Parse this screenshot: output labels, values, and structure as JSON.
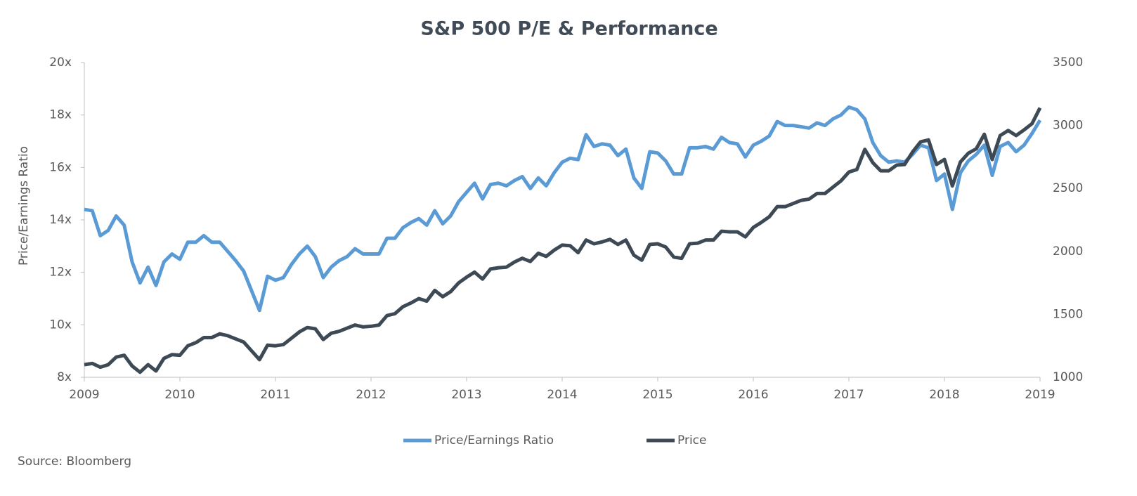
{
  "chart_data": {
    "type": "line",
    "title": "S&P 500 P/E & Performance",
    "y_label": "Price/Earnings Ratio",
    "source": "Source: Bloomberg",
    "x": [
      2009,
      2009.083,
      2009.167,
      2009.25,
      2009.333,
      2009.417,
      2009.5,
      2009.583,
      2009.667,
      2009.75,
      2009.833,
      2009.917,
      2010,
      2010.083,
      2010.167,
      2010.25,
      2010.333,
      2010.417,
      2010.5,
      2010.583,
      2010.667,
      2010.75,
      2010.833,
      2010.917,
      2011,
      2011.083,
      2011.167,
      2011.25,
      2011.333,
      2011.417,
      2011.5,
      2011.583,
      2011.667,
      2011.75,
      2011.833,
      2011.917,
      2012,
      2012.083,
      2012.167,
      2012.25,
      2012.333,
      2012.417,
      2012.5,
      2012.583,
      2012.667,
      2012.75,
      2012.833,
      2012.917,
      2013,
      2013.083,
      2013.167,
      2013.25,
      2013.333,
      2013.417,
      2013.5,
      2013.583,
      2013.667,
      2013.75,
      2013.833,
      2013.917,
      2014,
      2014.083,
      2014.167,
      2014.25,
      2014.333,
      2014.417,
      2014.5,
      2014.583,
      2014.667,
      2014.75,
      2014.833,
      2014.917,
      2015,
      2015.083,
      2015.167,
      2015.25,
      2015.333,
      2015.417,
      2015.5,
      2015.583,
      2015.667,
      2015.75,
      2015.833,
      2015.917,
      2016,
      2016.083,
      2016.167,
      2016.25,
      2016.333,
      2016.417,
      2016.5,
      2016.583,
      2016.667,
      2016.75,
      2016.833,
      2016.917,
      2017,
      2017.083,
      2017.167,
      2017.25,
      2017.333,
      2017.417,
      2017.5,
      2017.583,
      2017.667,
      2017.75,
      2017.833,
      2017.917,
      2018,
      2018.083,
      2018.167,
      2018.25,
      2018.333,
      2018.417,
      2018.5,
      2018.583,
      2018.667,
      2018.75,
      2018.833,
      2018.917,
      2019
    ],
    "series": [
      {
        "name": "Price/Earnings Ratio",
        "color": "#5b9bd5",
        "axis": "y",
        "values": [
          14.4,
          14.35,
          13.4,
          13.6,
          14.15,
          13.8,
          12.4,
          11.6,
          12.2,
          11.5,
          12.4,
          12.7,
          12.5,
          13.15,
          13.15,
          13.4,
          13.15,
          13.15,
          12.8,
          12.45,
          12.05,
          11.3,
          10.55,
          11.85,
          11.7,
          11.8,
          12.3,
          12.7,
          13.0,
          12.6,
          11.8,
          12.2,
          12.45,
          12.6,
          12.9,
          12.7,
          12.7,
          12.7,
          13.3,
          13.3,
          13.7,
          13.9,
          14.05,
          13.8,
          14.35,
          13.85,
          14.15,
          14.7,
          15.05,
          15.4,
          14.8,
          15.35,
          15.4,
          15.3,
          15.5,
          15.65,
          15.2,
          15.6,
          15.3,
          15.8,
          16.2,
          16.35,
          16.3,
          17.25,
          16.8,
          16.9,
          16.85,
          16.45,
          16.7,
          15.6,
          15.2,
          16.6,
          16.55,
          16.25,
          15.75,
          15.75,
          16.75,
          16.75,
          16.8,
          16.7,
          17.15,
          16.95,
          16.9,
          16.4,
          16.85,
          17.0,
          17.2,
          17.75,
          17.6,
          17.6,
          17.55,
          17.5,
          17.7,
          17.6,
          17.85,
          18.0,
          18.3,
          18.2,
          17.85,
          16.95,
          16.45,
          16.2,
          16.25,
          16.2,
          16.5,
          16.85,
          16.75,
          15.5,
          15.75,
          14.4,
          15.8,
          16.25,
          16.5,
          16.85,
          15.7,
          16.8,
          16.95,
          16.6,
          16.85,
          17.3,
          17.8
        ]
      },
      {
        "name": "Price",
        "color": "#3d4a55",
        "axis": "y2",
        "values": [
          1100,
          1110,
          1080,
          1100,
          1160,
          1175,
          1090,
          1040,
          1100,
          1050,
          1150,
          1180,
          1175,
          1250,
          1275,
          1315,
          1315,
          1345,
          1330,
          1305,
          1280,
          1210,
          1140,
          1255,
          1250,
          1260,
          1310,
          1360,
          1395,
          1385,
          1300,
          1350,
          1365,
          1390,
          1415,
          1400,
          1405,
          1415,
          1490,
          1505,
          1560,
          1590,
          1625,
          1605,
          1690,
          1640,
          1680,
          1750,
          1795,
          1835,
          1780,
          1860,
          1870,
          1875,
          1915,
          1945,
          1920,
          1985,
          1960,
          2010,
          2050,
          2045,
          1990,
          2090,
          2060,
          2075,
          2095,
          2055,
          2090,
          1970,
          1930,
          2055,
          2060,
          2035,
          1955,
          1945,
          2060,
          2065,
          2090,
          2090,
          2160,
          2155,
          2155,
          2115,
          2190,
          2230,
          2275,
          2355,
          2355,
          2380,
          2405,
          2415,
          2460,
          2460,
          2510,
          2560,
          2630,
          2650,
          2810,
          2705,
          2640,
          2640,
          2685,
          2690,
          2790,
          2870,
          2885,
          2690,
          2730,
          2520,
          2710,
          2780,
          2815,
          2930,
          2730,
          2920,
          2960,
          2920,
          2965,
          3015,
          3140
        ]
      }
    ],
    "xlim": [
      2009,
      2019
    ],
    "xticks": [
      2009,
      2010,
      2011,
      2012,
      2013,
      2014,
      2015,
      2016,
      2017,
      2018,
      2019
    ],
    "ylim": [
      8,
      20
    ],
    "yticks": [
      {
        "value": 8,
        "label": "8x"
      },
      {
        "value": 10,
        "label": "10x"
      },
      {
        "value": 12,
        "label": "12x"
      },
      {
        "value": 14,
        "label": "14x"
      },
      {
        "value": 16,
        "label": "16x"
      },
      {
        "value": 18,
        "label": "18x"
      },
      {
        "value": 20,
        "label": "20x"
      }
    ],
    "y2lim": [
      1000,
      3500
    ],
    "y2ticks": [
      1000,
      1500,
      2000,
      2500,
      3000,
      3500
    ],
    "legend": "bottom"
  }
}
